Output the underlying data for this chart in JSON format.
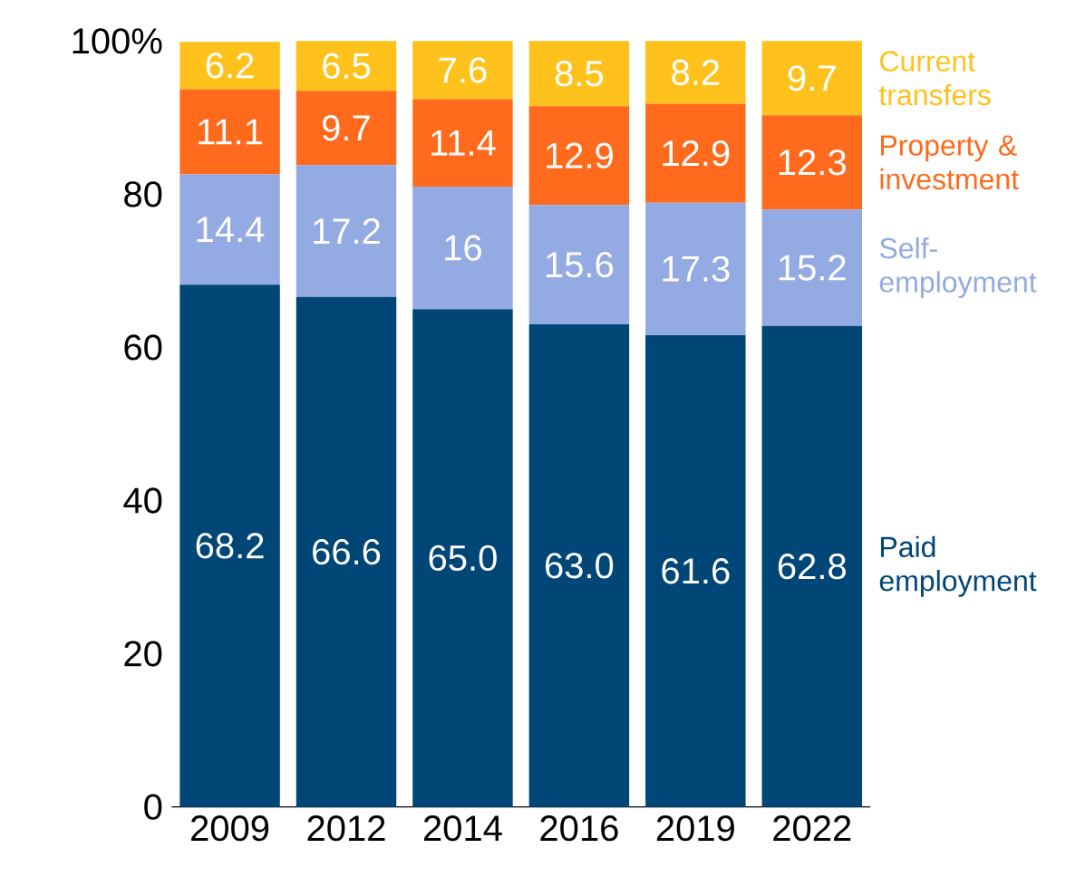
{
  "chart_data": {
    "type": "bar",
    "stacked": true,
    "categories": [
      "2009",
      "2012",
      "2014",
      "2016",
      "2019",
      "2022"
    ],
    "series": [
      {
        "name": "Paid employment",
        "color": "#004676",
        "values": [
          68.2,
          66.6,
          65.0,
          63.0,
          61.6,
          62.8
        ],
        "value_labels": [
          "68.2",
          "66.6",
          "65.0",
          "63.0",
          "61.6",
          "62.8"
        ]
      },
      {
        "name": "Self-employment",
        "color": "#94aae2",
        "values": [
          14.4,
          17.2,
          16,
          15.6,
          17.3,
          15.2
        ],
        "value_labels": [
          "14.4",
          "17.2",
          "16",
          "15.6",
          "17.3",
          "15.2"
        ]
      },
      {
        "name": "Property & investment",
        "color": "#ff6a1c",
        "values": [
          11.1,
          9.7,
          11.4,
          12.9,
          12.9,
          12.3
        ],
        "value_labels": [
          "11.1",
          "9.7",
          "11.4",
          "12.9",
          "12.9",
          "12.3"
        ]
      },
      {
        "name": "Current transfers",
        "color": "#ffc21c",
        "values": [
          6.2,
          6.5,
          7.6,
          8.5,
          8.2,
          9.7
        ],
        "value_labels": [
          "6.2",
          "6.5",
          "7.6",
          "8.5",
          "8.2",
          "9.7"
        ]
      }
    ],
    "ylim": [
      0,
      100
    ],
    "yticks": [
      0,
      20,
      40,
      60,
      80,
      {
        "value": 100,
        "label": "100%"
      }
    ],
    "legend": "right",
    "grid": false
  }
}
